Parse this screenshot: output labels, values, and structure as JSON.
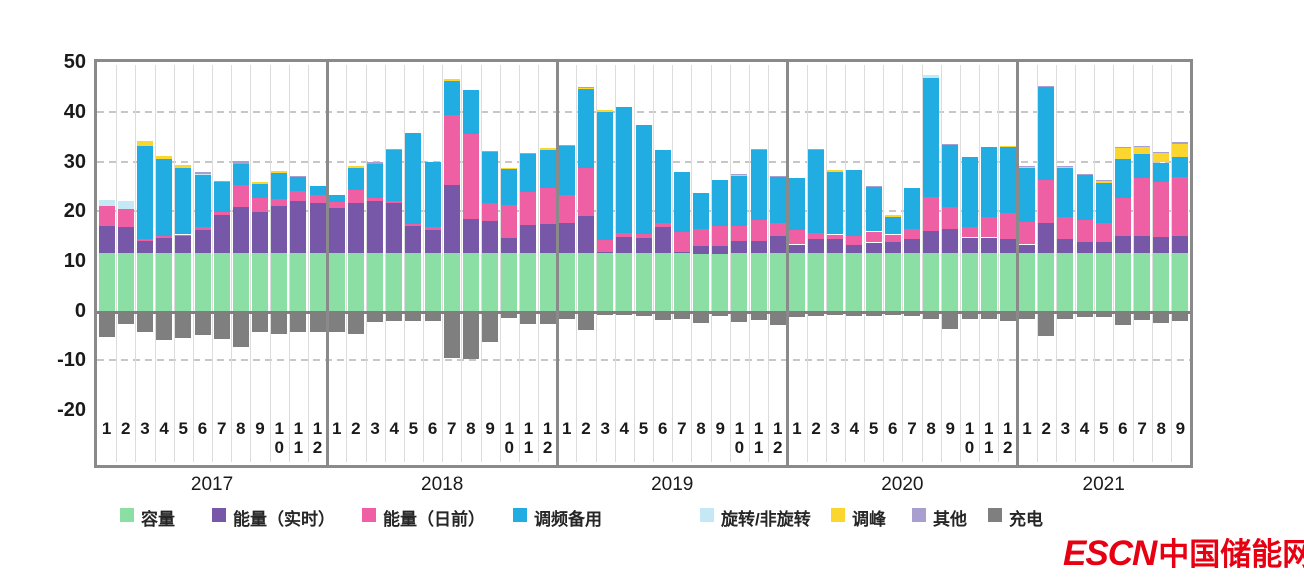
{
  "chart_data": {
    "type": "bar",
    "stacked": true,
    "grid": true,
    "legend_position": "bottom",
    "ylim": [
      -20,
      50
    ],
    "yticks": [
      50,
      40,
      30,
      20,
      10,
      0,
      -10,
      -20
    ],
    "dashed_gridlines_at": [
      40,
      30,
      20,
      -10
    ],
    "series_order": [
      "capacity",
      "energy_rt",
      "energy_da",
      "freq_reg",
      "spin",
      "peak",
      "other"
    ],
    "negative_series": "charge",
    "series_meta": [
      {
        "key": "capacity",
        "label": "容量",
        "color": "#8bdfa5"
      },
      {
        "key": "energy_rt",
        "label": "能量（实时）",
        "color": "#7757a8"
      },
      {
        "key": "energy_da",
        "label": "能量（日前）",
        "color": "#ee5fa4"
      },
      {
        "key": "freq_reg",
        "label": "调频备用",
        "color": "#21ace2"
      },
      {
        "key": "spin",
        "label": "旋转/非旋转",
        "color": "#c5e8f7"
      },
      {
        "key": "peak",
        "label": "调峰",
        "color": "#fad62e"
      },
      {
        "key": "other",
        "label": "其他",
        "color": "#a89ed0"
      },
      {
        "key": "charge",
        "label": "充电",
        "color": "#7f7f7f"
      }
    ],
    "years": [
      {
        "year": "2017",
        "months": [
          "1",
          "2",
          "3",
          "4",
          "5",
          "6",
          "7",
          "8",
          "9",
          "10",
          "11",
          "12"
        ],
        "capacity": [
          11.5,
          11.5,
          11.5,
          11.5,
          11.5,
          11.5,
          11.5,
          11.5,
          11.5,
          11.5,
          11.5,
          11.5
        ],
        "energy_rt": [
          5.5,
          5.3,
          2.6,
          3.2,
          3.5,
          4.7,
          7.7,
          9.3,
          8.3,
          9.5,
          10.5,
          10.1
        ],
        "energy_da": [
          4.0,
          3.7,
          0.3,
          0.3,
          0.3,
          0.6,
          0.6,
          4.4,
          2.8,
          1.4,
          2.0,
          1.6
        ],
        "freq_reg": [
          0,
          0,
          18.7,
          15.6,
          13.5,
          10.4,
          6.0,
          4.4,
          2.8,
          5.2,
          2.8,
          1.8
        ],
        "spin": [
          1.2,
          1.5,
          0,
          0,
          0,
          0.3,
          0,
          0,
          0,
          0,
          0,
          0
        ],
        "peak": [
          0,
          0,
          1.0,
          0.6,
          0.6,
          0,
          0,
          0,
          0.4,
          0.4,
          0,
          0
        ],
        "other": [
          0,
          0,
          0,
          0,
          0,
          0.3,
          0.3,
          0.5,
          0,
          0,
          0.2,
          0
        ],
        "charge": [
          -5.4,
          -2.8,
          -4.3,
          -5.9,
          -5.5,
          -5.0,
          -5.8,
          -7.3,
          -4.3,
          -4.7,
          -4.3,
          -4.3
        ]
      },
      {
        "year": "2018",
        "months": [
          "1",
          "2",
          "3",
          "4",
          "5",
          "6",
          "7",
          "8",
          "9",
          "10",
          "11",
          "12"
        ],
        "capacity": [
          11.5,
          11.5,
          11.5,
          11.5,
          11.5,
          11.5,
          11.5,
          11.5,
          11.5,
          11.5,
          11.5,
          11.5
        ],
        "energy_rt": [
          9.2,
          10.1,
          10.5,
          10.2,
          5.5,
          4.8,
          13.8,
          6.9,
          6.5,
          3.1,
          5.7,
          5.9
        ],
        "energy_da": [
          1.1,
          2.6,
          0.6,
          0.3,
          0.5,
          0.6,
          14.1,
          17.2,
          3.6,
          6.6,
          6.6,
          7.2
        ],
        "freq_reg": [
          1.4,
          4.4,
          7.0,
          10.4,
          18.3,
          13.0,
          6.7,
          8.7,
          10.4,
          7.2,
          7.8,
          7.8
        ],
        "spin": [
          0,
          0,
          0,
          0,
          0,
          0,
          0,
          0,
          0,
          0,
          0,
          0
        ],
        "peak": [
          0,
          0.4,
          0,
          0,
          0,
          0,
          0.4,
          0,
          0,
          0.3,
          0,
          0.3
        ],
        "other": [
          0,
          0,
          0.4,
          0.2,
          0,
          0,
          0,
          0,
          0.2,
          0,
          0.2,
          0
        ],
        "charge": [
          -4.4,
          -4.8,
          -2.4,
          -2.1,
          -2.2,
          -2.2,
          -9.6,
          -9.7,
          -6.3,
          -1.5,
          -2.7,
          -2.7
        ]
      },
      {
        "year": "2019",
        "months": [
          "1",
          "2",
          "3",
          "4",
          "5",
          "6",
          "7",
          "8",
          "9",
          "10",
          "11",
          "12"
        ],
        "capacity": [
          11.5,
          11.5,
          11.5,
          11.5,
          11.5,
          11.5,
          11.5,
          11.5,
          11.5,
          11.5,
          11.5,
          11.5
        ],
        "energy_rt": [
          6.1,
          7.5,
          0.3,
          3.3,
          3.1,
          5.4,
          0.3,
          1.5,
          1.5,
          2.5,
          2.5,
          3.5
        ],
        "energy_da": [
          5.6,
          9.6,
          2.5,
          0.9,
          0.9,
          0.8,
          4.1,
          3.4,
          4.0,
          3.0,
          4.3,
          2.7
        ],
        "freq_reg": [
          10.0,
          16.0,
          25.7,
          25.3,
          21.8,
          14.6,
          12.0,
          7.2,
          9.3,
          10.0,
          14.0,
          9.1
        ],
        "spin": [
          0,
          0,
          0,
          0,
          0,
          0,
          0,
          0,
          0,
          0,
          0,
          0
        ],
        "peak": [
          0,
          0.2,
          0.3,
          0,
          0,
          0,
          0,
          0,
          0,
          0.3,
          0,
          0
        ],
        "other": [
          0.2,
          0.2,
          0,
          0,
          0,
          0,
          0,
          0,
          0,
          0.2,
          0.2,
          0.2
        ],
        "charge": [
          -1.7,
          -3.9,
          -0.9,
          -0.8,
          -1.0,
          -2.0,
          -1.6,
          -2.6,
          -1.0,
          -2.3,
          -2.0,
          -3.0
        ]
      },
      {
        "year": "2020",
        "months": [
          "1",
          "2",
          "3",
          "4",
          "5",
          "6",
          "7",
          "8",
          "9",
          "10",
          "11",
          "12"
        ],
        "capacity": [
          11.5,
          11.5,
          11.5,
          11.5,
          11.5,
          11.5,
          11.5,
          11.5,
          11.5,
          11.5,
          11.5,
          11.5
        ],
        "energy_rt": [
          1.8,
          2.9,
          2.9,
          1.8,
          2.2,
          2.4,
          2.9,
          4.6,
          4.9,
          3.2,
          3.2,
          2.9
        ],
        "energy_da": [
          3.0,
          1.2,
          0.9,
          1.7,
          2.2,
          1.4,
          2.0,
          6.8,
          4.5,
          2.2,
          4.2,
          5.2
        ],
        "freq_reg": [
          10.3,
          16.7,
          12.6,
          13.3,
          9.0,
          3.6,
          8.2,
          24.0,
          12.4,
          14.0,
          14.0,
          13.3
        ],
        "spin": [
          0,
          0,
          0,
          0,
          0,
          0,
          0,
          0.5,
          0,
          0,
          0,
          0
        ],
        "peak": [
          0,
          0,
          0.3,
          0,
          0,
          0.3,
          0,
          0,
          0,
          0,
          0,
          0.3
        ],
        "other": [
          0,
          0.2,
          0,
          0,
          0.2,
          0,
          0,
          0,
          0.3,
          0,
          0,
          0
        ],
        "charge": [
          -1.2,
          -1.0,
          -0.8,
          -1.0,
          -1.0,
          -0.8,
          -1.0,
          -1.7,
          -3.8,
          -1.7,
          -1.8,
          -2.2
        ]
      },
      {
        "year": "2021",
        "months": [
          "1",
          "2",
          "3",
          "4",
          "5",
          "6",
          "7",
          "8",
          "9"
        ],
        "capacity": [
          11.5,
          11.5,
          11.5,
          11.5,
          11.5,
          11.5,
          11.5,
          11.5,
          11.5
        ],
        "energy_rt": [
          1.8,
          6.1,
          2.9,
          2.3,
          2.3,
          3.6,
          3.6,
          3.3,
          3.6
        ],
        "energy_da": [
          4.6,
          8.7,
          4.5,
          4.5,
          3.8,
          7.5,
          11.5,
          11.1,
          11.8
        ],
        "freq_reg": [
          10.7,
          18.6,
          9.7,
          9.0,
          8.0,
          7.9,
          5.0,
          3.9,
          4.0
        ],
        "spin": [
          0,
          0,
          0,
          0,
          0,
          0,
          0,
          0,
          0
        ],
        "peak": [
          0.2,
          0,
          0.2,
          0,
          0.5,
          2.3,
          1.3,
          2.0,
          2.7
        ],
        "other": [
          0.2,
          0.3,
          0.3,
          0.2,
          0.2,
          0.2,
          0.2,
          0.2,
          0.3
        ],
        "charge": [
          -1.7,
          -5.1,
          -1.8,
          -1.3,
          -1.3,
          -3.0,
          -2.0,
          -2.5,
          -2.2
        ]
      }
    ]
  },
  "logo": {
    "escn": "ESCN",
    "cn": "中国储能网",
    "color": "#e60012"
  }
}
